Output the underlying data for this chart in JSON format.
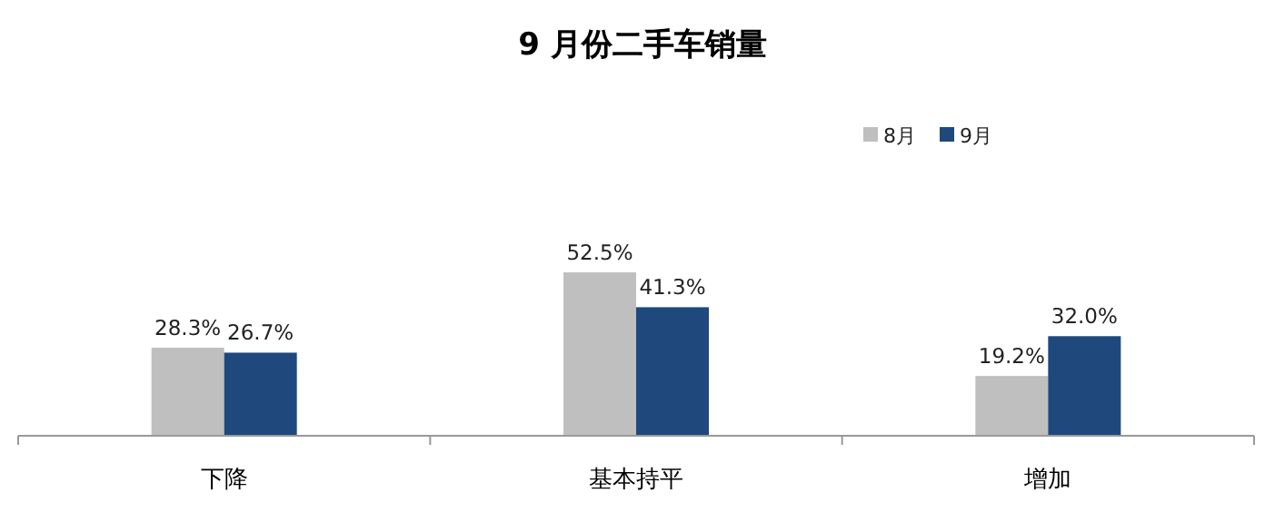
{
  "chart_data": {
    "type": "bar",
    "title": "9 月份二手车销量",
    "categories": [
      "下降",
      "基本持平",
      "增加"
    ],
    "series": [
      {
        "name": "8月",
        "color": "#bfbfbf",
        "values": [
          28.3,
          52.5,
          19.2
        ],
        "value_labels": [
          "28.3%",
          "52.5%",
          "19.2%"
        ]
      },
      {
        "name": "9月",
        "color": "#1f497d",
        "values": [
          26.7,
          41.3,
          32.0
        ],
        "value_labels": [
          "26.7%",
          "41.3%",
          "32.0%"
        ]
      }
    ],
    "legend": "top right"
  }
}
